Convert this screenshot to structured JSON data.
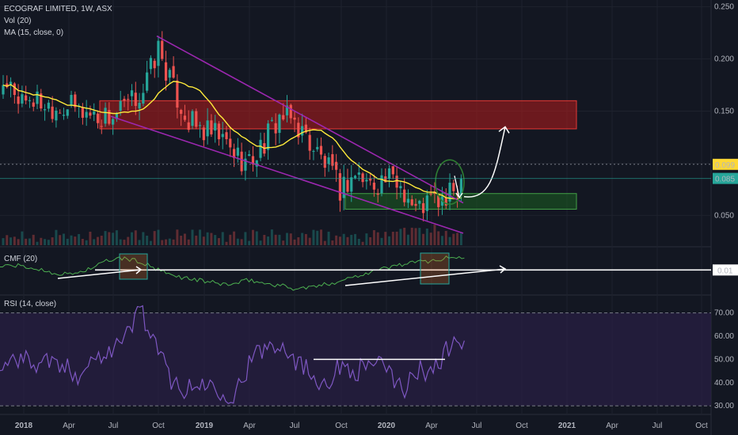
{
  "header": {
    "symbol_line": "ECOGRAF LIMITED, 1W, ASX",
    "vol_label": "Vol (20)",
    "ma_label": "MA (15, close, 0)"
  },
  "colors": {
    "background": "#131722",
    "up_candle": "#26a69a",
    "down_candle": "#ef5350",
    "ma_line": "#ffeb3b",
    "wedge": "#9c27b0",
    "cmf_line": "#4caf50",
    "rsi_line": "#7e57c2",
    "rsi_band": "#2a1f45",
    "annotation": "#ffffff",
    "resistance_zone": "#b71c1c",
    "support_zone": "#1b5e20"
  },
  "chart_data": [
    {
      "type": "candlestick",
      "title": "ECOGRAF LIMITED, 1W, ASX",
      "ylim": [
        0.02,
        0.255
      ],
      "y_ticks": [
        "0.250",
        "0.200",
        "0.150",
        "0.100",
        "0.050"
      ],
      "x_ticks": [
        "2018",
        "Apr",
        "Jul",
        "Oct",
        "2019",
        "Apr",
        "Jul",
        "Oct",
        "2020",
        "Apr",
        "Jul",
        "Oct",
        "2021",
        "Apr",
        "Jul",
        "Oct"
      ],
      "price_labels": {
        "dotted_level": "0.099",
        "last_price": "0.085"
      },
      "close_path": [
        [
          "2018-01",
          0.165
        ],
        [
          "2018-02",
          0.16
        ],
        [
          "2018-03",
          0.155
        ],
        [
          "2018-04",
          0.155
        ],
        [
          "2018-05",
          0.15
        ],
        [
          "2018-06",
          0.145
        ],
        [
          "2018-07",
          0.145
        ],
        [
          "2018-08",
          0.155
        ],
        [
          "2018-09",
          0.17
        ],
        [
          "2018-10",
          0.21
        ],
        [
          "2018-11",
          0.17
        ],
        [
          "2018-12",
          0.14
        ],
        [
          "2019-01",
          0.13
        ],
        [
          "2019-02",
          0.125
        ],
        [
          "2019-03",
          0.11
        ],
        [
          "2019-04",
          0.1
        ],
        [
          "2019-05",
          0.12
        ],
        [
          "2019-06",
          0.145
        ],
        [
          "2019-07",
          0.14
        ],
        [
          "2019-08",
          0.12
        ],
        [
          "2019-09",
          0.1
        ],
        [
          "2019-10",
          0.075
        ],
        [
          "2019-11",
          0.09
        ],
        [
          "2019-12",
          0.08
        ],
        [
          "2020-01",
          0.085
        ],
        [
          "2020-02",
          0.08
        ],
        [
          "2020-03",
          0.055
        ],
        [
          "2020-04",
          0.065
        ],
        [
          "2020-05",
          0.063
        ],
        [
          "2020-06",
          0.085
        ]
      ],
      "series": [
        {
          "name": "MA (15, close, 0)"
        }
      ]
    },
    {
      "type": "line",
      "title": "CMF (20)",
      "value_label": "0.01",
      "values": [
        0.05,
        0.06,
        0.03,
        0.0,
        -0.04,
        -0.02,
        0.04,
        0.12,
        0.14,
        0.1,
        0.02,
        -0.05,
        -0.08,
        -0.11,
        -0.14,
        -0.15,
        -0.1,
        -0.14,
        -0.16,
        -0.2,
        -0.18,
        -0.15,
        -0.1,
        -0.05,
        0.0,
        0.04,
        0.08,
        0.1,
        0.12,
        0.15
      ]
    },
    {
      "type": "line",
      "title": "RSI (14, close)",
      "y_ticks": [
        "70.00",
        "60.00",
        "50.00",
        "40.00",
        "30.00"
      ],
      "ylim": [
        27,
        77
      ],
      "band": [
        30,
        70
      ],
      "values": [
        45,
        52,
        48,
        50,
        46,
        44,
        50,
        55,
        58,
        73,
        55,
        42,
        36,
        40,
        38,
        34,
        48,
        55,
        58,
        50,
        44,
        40,
        48,
        45,
        50,
        43,
        38,
        45,
        47,
        57
      ],
      "annotation_level": 50
    }
  ]
}
